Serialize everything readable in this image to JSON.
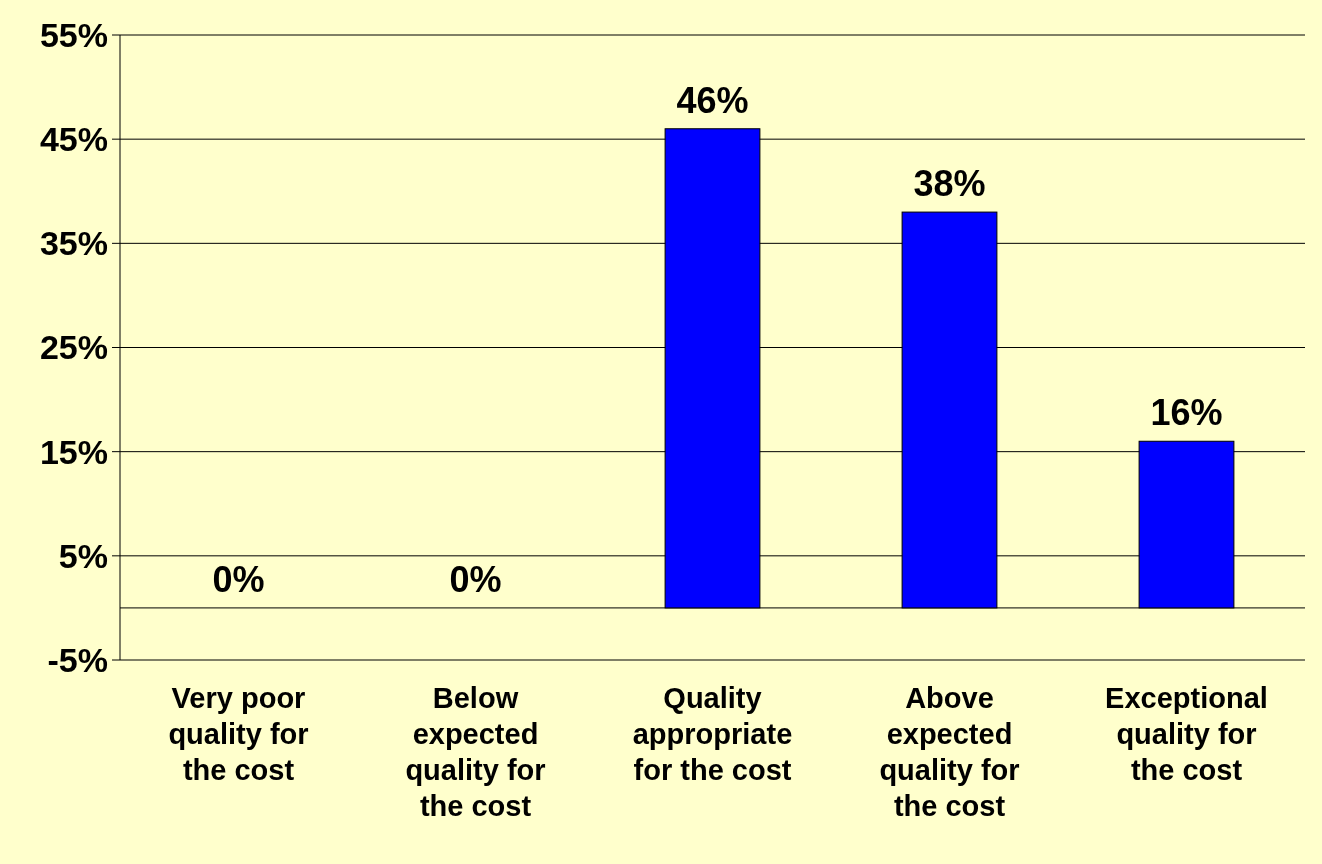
{
  "chart_data": {
    "type": "bar",
    "categories": [
      "Very poor quality for the cost",
      "Below expected quality for the cost",
      "Quality appropriate for the cost",
      "Above expected quality for the cost",
      "Exceptional quality for the cost"
    ],
    "values": [
      0,
      0,
      46,
      38,
      16
    ],
    "value_labels": [
      "0%",
      "0%",
      "46%",
      "38%",
      "16%"
    ],
    "color": "#0000ff",
    "ylim": [
      -5,
      55
    ],
    "yticks": [
      {
        "value": -5,
        "label": "-5%"
      },
      {
        "value": 5,
        "label": "5%"
      },
      {
        "value": 15,
        "label": "15%"
      },
      {
        "value": 25,
        "label": "25%"
      },
      {
        "value": 35,
        "label": "35%"
      },
      {
        "value": 45,
        "label": "45%"
      },
      {
        "value": 55,
        "label": "55%"
      }
    ],
    "grid": "y"
  }
}
